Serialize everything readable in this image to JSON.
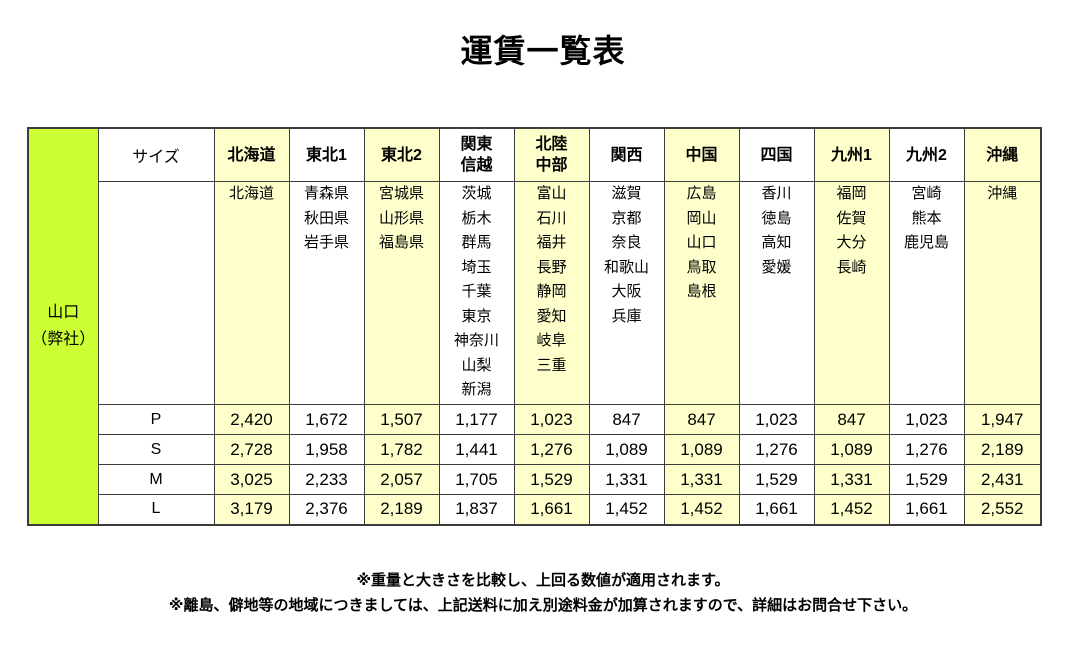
{
  "title": "運賃一覧表",
  "origin": {
    "line1": "山口",
    "line2": "（弊社）"
  },
  "size_header": "サイズ",
  "columns": [
    {
      "label_lines": [
        "北海道"
      ],
      "prefectures": [
        "北海道"
      ],
      "highlight": true
    },
    {
      "label_lines": [
        "東北1"
      ],
      "prefectures": [
        "青森県",
        "秋田県",
        "岩手県"
      ],
      "highlight": false
    },
    {
      "label_lines": [
        "東北2"
      ],
      "prefectures": [
        "宮城県",
        "山形県",
        "福島県"
      ],
      "highlight": true
    },
    {
      "label_lines": [
        "関東",
        "信越"
      ],
      "prefectures": [
        "茨城",
        "栃木",
        "群馬",
        "埼玉",
        "千葉",
        "東京",
        "神奈川",
        "山梨",
        "新潟"
      ],
      "highlight": false
    },
    {
      "label_lines": [
        "北陸",
        "中部"
      ],
      "prefectures": [
        "富山",
        "石川",
        "福井",
        "長野",
        "静岡",
        "愛知",
        "岐阜",
        "三重"
      ],
      "highlight": true
    },
    {
      "label_lines": [
        "関西"
      ],
      "prefectures": [
        "滋賀",
        "京都",
        "奈良",
        "和歌山",
        "大阪",
        "兵庫"
      ],
      "highlight": false
    },
    {
      "label_lines": [
        "中国"
      ],
      "prefectures": [
        "広島",
        "岡山",
        "山口",
        "鳥取",
        "島根"
      ],
      "highlight": true
    },
    {
      "label_lines": [
        "四国"
      ],
      "prefectures": [
        "香川",
        "徳島",
        "高知",
        "愛媛"
      ],
      "highlight": false
    },
    {
      "label_lines": [
        "九州1"
      ],
      "prefectures": [
        "福岡",
        "佐賀",
        "大分",
        "長崎"
      ],
      "highlight": true
    },
    {
      "label_lines": [
        "九州2"
      ],
      "prefectures": [
        "宮崎",
        "熊本",
        "鹿児島"
      ],
      "highlight": false
    },
    {
      "label_lines": [
        "沖縄"
      ],
      "prefectures": [
        "沖縄"
      ],
      "highlight": true
    }
  ],
  "rows": [
    {
      "size": "P",
      "values": [
        "2,420",
        "1,672",
        "1,507",
        "1,177",
        "1,023",
        "847",
        "847",
        "1,023",
        "847",
        "1,023",
        "1,947"
      ]
    },
    {
      "size": "S",
      "values": [
        "2,728",
        "1,958",
        "1,782",
        "1,441",
        "1,276",
        "1,089",
        "1,089",
        "1,276",
        "1,089",
        "1,276",
        "2,189"
      ]
    },
    {
      "size": "M",
      "values": [
        "3,025",
        "2,233",
        "2,057",
        "1,705",
        "1,529",
        "1,331",
        "1,331",
        "1,529",
        "1,331",
        "1,529",
        "2,431"
      ]
    },
    {
      "size": "L",
      "values": [
        "3,179",
        "2,376",
        "2,189",
        "1,837",
        "1,661",
        "1,452",
        "1,452",
        "1,661",
        "1,452",
        "1,661",
        "2,552"
      ]
    }
  ],
  "notes": [
    "※重量と大きさを比較し、上回る数値が適用されます。",
    "※離島、僻地等の地域につきましては、上記送料に加え別途料金が加算されますので、詳細はお問合せ下さい。"
  ],
  "colors": {
    "origin_bg": "#ccff33",
    "highlight_bg": "#ffffcc",
    "border": "#3c3c3c"
  }
}
